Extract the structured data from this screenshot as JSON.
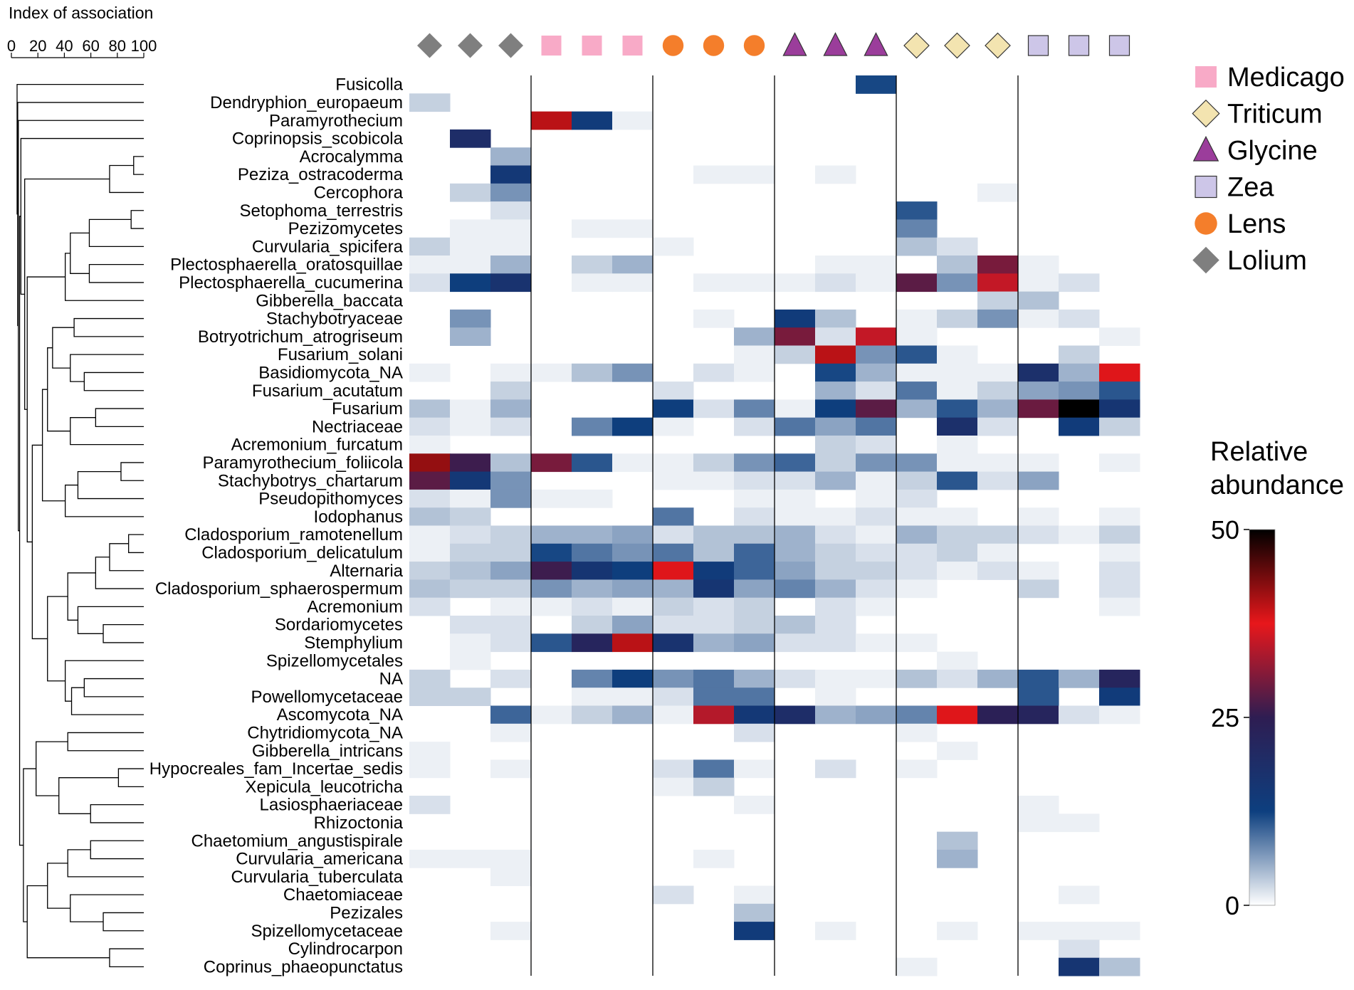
{
  "chart_data": {
    "type": "heatmap",
    "dendrogram_axis": {
      "title": "Index of association",
      "ticks": [
        "0",
        "20",
        "40",
        "60",
        "80",
        "100"
      ]
    },
    "colorbar": {
      "title_line1": "Relative",
      "title_line2": "abundance",
      "ticks": [
        "50",
        "25",
        "0"
      ],
      "range": [
        0,
        50
      ],
      "colors": [
        "#ffffff",
        "#0d3f7f",
        "#2e1d52",
        "#e8171b",
        "#000000"
      ]
    },
    "legend": [
      {
        "label": "Medicago",
        "shape": "square",
        "color": "#f8aac7"
      },
      {
        "label": "Triticum",
        "shape": "diamond",
        "color": "#f3e4b0"
      },
      {
        "label": "Glycine",
        "shape": "triangle",
        "color": "#9b3d9b"
      },
      {
        "label": "Zea",
        "shape": "square",
        "color": "#cdc6e8"
      },
      {
        "label": "Lens",
        "shape": "circle",
        "color": "#f47e2b"
      },
      {
        "label": "Lolium",
        "shape": "diamond",
        "color": "#7f7f7f"
      }
    ],
    "column_groups": [
      {
        "group": "Lolium",
        "shape": "diamond",
        "color": "#7f7f7f",
        "replicates": 3
      },
      {
        "group": "Medicago",
        "shape": "square",
        "color": "#f8aac7",
        "replicates": 3
      },
      {
        "group": "Lens",
        "shape": "circle",
        "color": "#f47e2b",
        "replicates": 3
      },
      {
        "group": "Glycine",
        "shape": "triangle",
        "color": "#9b3d9b",
        "replicates": 3
      },
      {
        "group": "Triticum",
        "shape": "diamond",
        "color": "#f3e4b0",
        "replicates": 3
      },
      {
        "group": "Zea",
        "shape": "square",
        "color": "#cdc6e8",
        "replicates": 3
      }
    ],
    "rows": [
      "Fusicolla",
      "Dendryphion_europaeum",
      "Paramyrothecium",
      "Coprinopsis_scobicola",
      "Acrocalymma",
      "Peziza_ostracoderma",
      "Cercophora",
      "Setophoma_terrestris",
      "Pezizomycetes",
      "Curvularia_spicifera",
      "Plectosphaerella_oratosquillae",
      "Plectosphaerella_cucumerina",
      "Gibberella_baccata",
      "Stachybotryaceae",
      "Botryotrichum_atrogriseum",
      "Fusarium_solani",
      "Basidiomycota_NA",
      "Fusarium_acutatum",
      "Fusarium",
      "Nectriaceae",
      "Acremonium_furcatum",
      "Paramyrothecium_foliicola",
      "Stachybotrys_chartarum",
      "Pseudopithomyces",
      "Iodophanus",
      "Cladosporium_ramotenellum",
      "Cladosporium_delicatulum",
      "Alternaria",
      "Cladosporium_sphaerospermum",
      "Acremonium",
      "Sordariomycetes",
      "Stemphylium",
      "Spizellomycetales",
      "NA",
      "Powellomycetaceae",
      "Ascomycota_NA",
      "Chytridiomycota_NA",
      "Gibberella_intricans",
      "Hypocreales_fam_Incertae_sedis",
      "Xepicula_leucotricha",
      "Lasiosphaeriaceae",
      "Rhizoctonia",
      "Chaetomium_angustispirale",
      "Curvularia_americana",
      "Curvularia_tuberculata",
      "Chaetomiaceae",
      "Pezizales",
      "Spizellomycetaceae",
      "Cylindrocarpon",
      "Coprinus_phaeopunctatus"
    ],
    "values": [
      [
        0,
        0,
        0,
        0,
        0,
        0,
        0,
        0,
        0,
        0,
        0,
        12,
        0,
        0,
        0,
        0,
        0,
        0
      ],
      [
        3,
        0,
        0,
        0,
        0,
        0,
        0,
        0,
        0,
        0,
        0,
        0,
        0,
        0,
        0,
        0,
        0,
        0
      ],
      [
        0,
        0,
        0,
        40,
        14,
        1,
        0,
        0,
        0,
        0,
        0,
        0,
        0,
        0,
        0,
        0,
        0,
        0
      ],
      [
        0,
        19,
        0,
        0,
        0,
        0,
        0,
        0,
        0,
        0,
        0,
        0,
        0,
        0,
        0,
        0,
        0,
        0
      ],
      [
        0,
        0,
        5,
        0,
        0,
        0,
        0,
        0,
        0,
        0,
        0,
        0,
        0,
        0,
        0,
        0,
        0,
        0
      ],
      [
        0,
        0,
        15,
        0,
        0,
        0,
        0,
        1,
        1,
        0,
        1,
        0,
        0,
        0,
        0,
        0,
        0,
        0
      ],
      [
        0,
        3,
        7,
        0,
        0,
        0,
        0,
        0,
        0,
        0,
        0,
        0,
        0,
        0,
        1,
        0,
        0,
        0
      ],
      [
        0,
        0,
        2,
        0,
        0,
        0,
        0,
        0,
        0,
        0,
        0,
        0,
        11,
        0,
        0,
        0,
        0,
        0
      ],
      [
        0,
        1,
        1,
        0,
        1,
        1,
        0,
        0,
        0,
        0,
        0,
        0,
        8,
        0,
        0,
        0,
        0,
        0
      ],
      [
        3,
        1,
        1,
        0,
        0,
        0,
        1,
        0,
        0,
        0,
        0,
        0,
        4,
        2,
        0,
        0,
        0,
        0
      ],
      [
        1,
        1,
        5,
        0,
        3,
        5,
        0,
        0,
        0,
        0,
        1,
        1,
        0,
        4,
        30,
        1,
        0,
        0
      ],
      [
        2,
        13,
        17,
        0,
        1,
        1,
        0,
        1,
        1,
        1,
        2,
        1,
        28,
        7,
        35,
        1,
        2,
        0
      ],
      [
        0,
        0,
        0,
        0,
        0,
        0,
        0,
        0,
        0,
        0,
        0,
        0,
        0,
        0,
        3,
        4,
        0,
        0
      ],
      [
        0,
        7,
        0,
        0,
        0,
        0,
        0,
        1,
        0,
        14,
        4,
        0,
        1,
        3,
        7,
        1,
        2,
        0
      ],
      [
        0,
        5,
        0,
        0,
        0,
        0,
        0,
        0,
        5,
        30,
        2,
        35,
        1,
        0,
        0,
        0,
        0,
        1
      ],
      [
        0,
        0,
        0,
        0,
        0,
        0,
        0,
        0,
        1,
        3,
        40,
        7,
        11,
        1,
        0,
        0,
        3,
        0
      ],
      [
        1,
        0,
        1,
        1,
        4,
        7,
        0,
        2,
        1,
        0,
        12,
        5,
        1,
        1,
        1,
        18,
        5,
        38
      ],
      [
        0,
        0,
        3,
        0,
        0,
        0,
        2,
        0,
        0,
        0,
        5,
        2,
        9,
        1,
        3,
        6,
        7,
        11
      ],
      [
        4,
        1,
        5,
        0,
        0,
        0,
        13,
        2,
        8,
        1,
        13,
        28,
        5,
        11,
        5,
        29,
        50,
        16
      ],
      [
        2,
        1,
        2,
        0,
        8,
        13,
        1,
        0,
        2,
        9,
        6,
        9,
        0,
        18,
        2,
        0,
        14,
        3
      ],
      [
        1,
        0,
        0,
        0,
        0,
        0,
        0,
        0,
        0,
        0,
        3,
        2,
        0,
        1,
        0,
        0,
        0,
        0
      ],
      [
        42,
        26,
        4,
        30,
        11,
        1,
        1,
        3,
        7,
        10,
        3,
        7,
        7,
        1,
        1,
        1,
        0,
        1
      ],
      [
        28,
        15,
        7,
        0,
        0,
        0,
        1,
        1,
        2,
        2,
        5,
        1,
        3,
        11,
        2,
        6,
        0,
        0
      ],
      [
        2,
        1,
        7,
        1,
        1,
        0,
        0,
        0,
        1,
        1,
        0,
        1,
        2,
        0,
        0,
        0,
        0,
        0
      ],
      [
        4,
        3,
        0,
        0,
        0,
        0,
        9,
        0,
        2,
        1,
        1,
        2,
        1,
        1,
        0,
        1,
        0,
        1
      ],
      [
        1,
        2,
        3,
        5,
        5,
        6,
        2,
        4,
        4,
        5,
        2,
        1,
        5,
        3,
        3,
        2,
        1,
        3
      ],
      [
        1,
        3,
        3,
        12,
        9,
        7,
        9,
        4,
        10,
        5,
        3,
        2,
        2,
        3,
        1,
        0,
        0,
        1
      ],
      [
        3,
        4,
        6,
        26,
        16,
        13,
        38,
        14,
        10,
        6,
        3,
        3,
        2,
        1,
        2,
        1,
        0,
        2
      ],
      [
        4,
        3,
        3,
        7,
        5,
        6,
        5,
        16,
        6,
        8,
        5,
        2,
        1,
        0,
        0,
        3,
        0,
        2
      ],
      [
        2,
        0,
        1,
        1,
        2,
        1,
        3,
        2,
        3,
        0,
        2,
        1,
        0,
        0,
        0,
        0,
        0,
        1
      ],
      [
        0,
        2,
        2,
        0,
        3,
        6,
        2,
        2,
        3,
        4,
        2,
        0,
        0,
        0,
        0,
        0,
        0,
        0
      ],
      [
        0,
        1,
        2,
        11,
        22,
        40,
        17,
        5,
        6,
        2,
        2,
        1,
        1,
        0,
        0,
        0,
        0,
        0
      ],
      [
        0,
        1,
        0,
        0,
        0,
        0,
        0,
        0,
        0,
        0,
        0,
        0,
        0,
        1,
        0,
        0,
        0,
        0
      ],
      [
        3,
        0,
        2,
        0,
        8,
        13,
        7,
        9,
        5,
        2,
        1,
        1,
        4,
        2,
        5,
        11,
        5,
        22
      ],
      [
        3,
        3,
        0,
        0,
        1,
        1,
        2,
        9,
        9,
        0,
        1,
        0,
        0,
        0,
        0,
        11,
        0,
        14
      ],
      [
        0,
        0,
        10,
        1,
        3,
        5,
        1,
        34,
        15,
        19,
        5,
        6,
        8,
        38,
        24,
        22,
        2,
        1
      ],
      [
        0,
        0,
        1,
        0,
        0,
        0,
        0,
        0,
        2,
        0,
        0,
        0,
        1,
        0,
        0,
        0,
        0,
        0
      ],
      [
        1,
        0,
        0,
        0,
        0,
        0,
        0,
        0,
        0,
        0,
        0,
        0,
        0,
        1,
        0,
        0,
        0,
        0
      ],
      [
        1,
        0,
        1,
        0,
        0,
        0,
        2,
        9,
        1,
        0,
        2,
        0,
        1,
        0,
        0,
        0,
        0,
        0
      ],
      [
        0,
        0,
        0,
        0,
        0,
        0,
        1,
        3,
        0,
        0,
        0,
        0,
        0,
        0,
        0,
        0,
        0,
        0
      ],
      [
        2,
        0,
        0,
        0,
        0,
        0,
        0,
        0,
        1,
        0,
        0,
        0,
        0,
        0,
        0,
        1,
        0,
        0
      ],
      [
        0,
        0,
        0,
        0,
        0,
        0,
        0,
        0,
        0,
        0,
        0,
        0,
        0,
        0,
        0,
        1,
        1,
        0
      ],
      [
        0,
        0,
        0,
        0,
        0,
        0,
        0,
        0,
        0,
        0,
        0,
        0,
        0,
        4,
        0,
        0,
        0,
        0
      ],
      [
        1,
        1,
        1,
        0,
        0,
        0,
        0,
        1,
        0,
        0,
        0,
        0,
        0,
        5,
        0,
        0,
        0,
        0
      ],
      [
        0,
        0,
        1,
        0,
        0,
        0,
        0,
        0,
        0,
        0,
        0,
        0,
        0,
        0,
        0,
        0,
        0,
        0
      ],
      [
        0,
        0,
        0,
        0,
        0,
        0,
        2,
        0,
        1,
        0,
        0,
        0,
        0,
        0,
        0,
        0,
        1,
        0
      ],
      [
        0,
        0,
        0,
        0,
        0,
        0,
        0,
        0,
        4,
        0,
        0,
        0,
        0,
        0,
        0,
        0,
        0,
        0
      ],
      [
        0,
        0,
        1,
        0,
        0,
        0,
        0,
        0,
        14,
        0,
        1,
        0,
        0,
        1,
        0,
        1,
        1,
        1
      ],
      [
        0,
        0,
        0,
        0,
        0,
        0,
        0,
        0,
        0,
        0,
        0,
        0,
        0,
        0,
        0,
        0,
        2,
        0
      ],
      [
        0,
        0,
        0,
        0,
        0,
        0,
        0,
        0,
        0,
        0,
        0,
        0,
        1,
        0,
        0,
        0,
        16,
        4
      ]
    ]
  }
}
